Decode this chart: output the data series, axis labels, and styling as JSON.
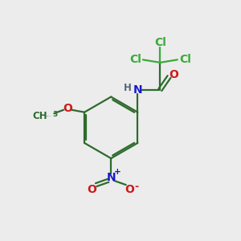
{
  "bg_color": "#ececec",
  "bond_color": "#2d6b2d",
  "N_color": "#1a1acc",
  "O_color": "#cc1a1a",
  "Cl_color": "#3aaa3a",
  "H_color": "#556677",
  "figsize": [
    3.0,
    3.0
  ],
  "dpi": 100,
  "xlim": [
    0,
    10
  ],
  "ylim": [
    0,
    10
  ]
}
